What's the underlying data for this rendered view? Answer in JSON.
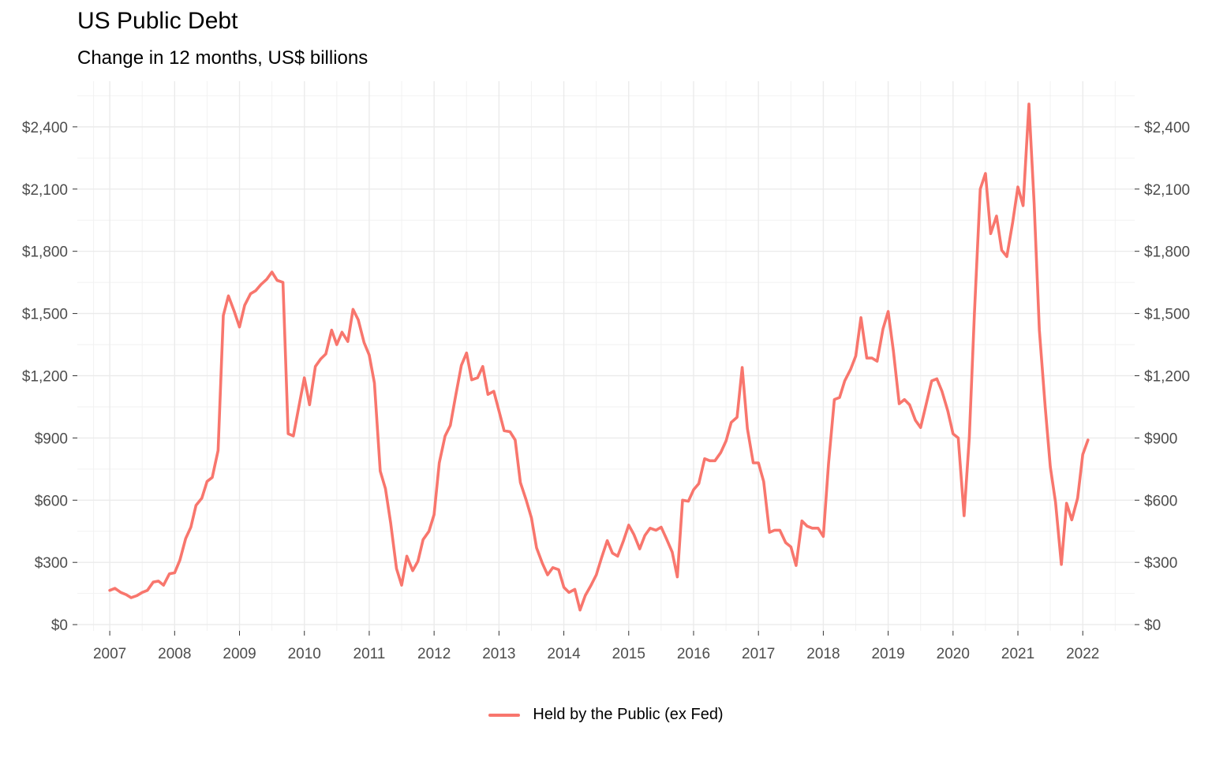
{
  "chart_data": {
    "type": "line",
    "title": "US Public Debt",
    "subtitle": "Change in 12 months, US$ billions",
    "xlabel": "",
    "ylabel": "",
    "xlim": [
      2006.5,
      2022.8
    ],
    "ylim": [
      -30,
      2620
    ],
    "y_ticks": [
      0,
      300,
      600,
      900,
      1200,
      1500,
      1800,
      2100,
      2400
    ],
    "y_tick_labels": [
      "$0",
      "$300",
      "$600",
      "$900",
      "$1,200",
      "$1,500",
      "$1,800",
      "$2,100",
      "$2,400"
    ],
    "x_ticks": [
      2007,
      2008,
      2009,
      2010,
      2011,
      2012,
      2013,
      2014,
      2015,
      2016,
      2017,
      2018,
      2019,
      2020,
      2021,
      2022
    ],
    "x_tick_labels": [
      "2007",
      "2008",
      "2009",
      "2010",
      "2011",
      "2012",
      "2013",
      "2014",
      "2015",
      "2016",
      "2017",
      "2018",
      "2019",
      "2020",
      "2021",
      "2022"
    ],
    "grid": true,
    "secondary_y_axis": true,
    "legend_position": "bottom",
    "series": [
      {
        "name": "Held by the Public (ex Fed)",
        "color": "#F8766D",
        "x": [
          2007.0,
          2007.08,
          2007.17,
          2007.25,
          2007.33,
          2007.42,
          2007.5,
          2007.58,
          2007.67,
          2007.75,
          2007.83,
          2007.92,
          2008.0,
          2008.08,
          2008.17,
          2008.25,
          2008.33,
          2008.42,
          2008.5,
          2008.58,
          2008.67,
          2008.75,
          2008.83,
          2008.92,
          2009.0,
          2009.08,
          2009.17,
          2009.25,
          2009.33,
          2009.42,
          2009.5,
          2009.58,
          2009.67,
          2009.75,
          2009.83,
          2009.92,
          2010.0,
          2010.08,
          2010.17,
          2010.25,
          2010.33,
          2010.42,
          2010.5,
          2010.58,
          2010.67,
          2010.75,
          2010.83,
          2010.92,
          2011.0,
          2011.08,
          2011.17,
          2011.25,
          2011.33,
          2011.42,
          2011.5,
          2011.58,
          2011.67,
          2011.75,
          2011.83,
          2011.92,
          2012.0,
          2012.08,
          2012.17,
          2012.25,
          2012.33,
          2012.42,
          2012.5,
          2012.58,
          2012.67,
          2012.75,
          2012.83,
          2012.92,
          2013.0,
          2013.08,
          2013.17,
          2013.25,
          2013.33,
          2013.42,
          2013.5,
          2013.58,
          2013.67,
          2013.75,
          2013.83,
          2013.92,
          2014.0,
          2014.08,
          2014.17,
          2014.25,
          2014.33,
          2014.42,
          2014.5,
          2014.58,
          2014.67,
          2014.75,
          2014.83,
          2014.92,
          2015.0,
          2015.08,
          2015.17,
          2015.25,
          2015.33,
          2015.42,
          2015.5,
          2015.58,
          2015.67,
          2015.75,
          2015.83,
          2015.92,
          2016.0,
          2016.08,
          2016.17,
          2016.25,
          2016.33,
          2016.42,
          2016.5,
          2016.58,
          2016.67,
          2016.75,
          2016.83,
          2016.92,
          2017.0,
          2017.08,
          2017.17,
          2017.25,
          2017.33,
          2017.42,
          2017.5,
          2017.58,
          2017.67,
          2017.75,
          2017.83,
          2017.92,
          2018.0,
          2018.08,
          2018.17,
          2018.25,
          2018.33,
          2018.42,
          2018.5,
          2018.58,
          2018.67,
          2018.75,
          2018.83,
          2018.92,
          2019.0,
          2019.08,
          2019.17,
          2019.25,
          2019.33,
          2019.42,
          2019.5,
          2019.58,
          2019.67,
          2019.75,
          2019.83,
          2019.92,
          2020.0,
          2020.08,
          2020.17,
          2020.25,
          2020.33,
          2020.42,
          2020.5,
          2020.58,
          2020.67,
          2020.75,
          2020.83,
          2020.92,
          2021.0,
          2021.08,
          2021.17,
          2021.25,
          2021.33,
          2021.42,
          2021.5,
          2021.58,
          2021.67,
          2021.75,
          2021.83,
          2021.92,
          2022.0,
          2022.08
        ],
        "values": [
          165,
          175,
          155,
          145,
          130,
          140,
          155,
          165,
          205,
          210,
          190,
          245,
          250,
          310,
          415,
          470,
          575,
          610,
          690,
          710,
          840,
          1490,
          1585,
          1510,
          1435,
          1540,
          1595,
          1610,
          1640,
          1665,
          1700,
          1660,
          1650,
          920,
          910,
          1060,
          1190,
          1060,
          1245,
          1280,
          1305,
          1420,
          1350,
          1410,
          1365,
          1520,
          1470,
          1360,
          1300,
          1165,
          740,
          655,
          490,
          270,
          190,
          330,
          260,
          305,
          410,
          450,
          530,
          780,
          910,
          960,
          1100,
          1250,
          1310,
          1180,
          1190,
          1245,
          1110,
          1125,
          1030,
          935,
          930,
          890,
          685,
          600,
          515,
          370,
          295,
          240,
          275,
          265,
          180,
          155,
          170,
          70,
          140,
          190,
          240,
          320,
          405,
          345,
          330,
          405,
          480,
          435,
          365,
          430,
          465,
          455,
          470,
          415,
          350,
          230,
          600,
          595,
          650,
          680,
          800,
          790,
          790,
          830,
          885,
          975,
          1000,
          1240,
          945,
          780,
          780,
          690,
          445,
          455,
          455,
          395,
          375,
          285,
          500,
          475,
          465,
          465,
          425,
          775,
          1085,
          1095,
          1175,
          1230,
          1295,
          1480,
          1285,
          1285,
          1270,
          1425,
          1510,
          1320,
          1065,
          1085,
          1060,
          985,
          950,
          1055,
          1175,
          1185,
          1125,
          1030,
          920,
          900,
          525,
          900,
          1500,
          2100,
          2175,
          1885,
          1970,
          1805,
          1775,
          1940,
          2110,
          2020,
          2510,
          2030,
          1420,
          1050,
          760,
          590,
          290,
          585,
          505,
          610,
          820,
          890
        ]
      }
    ]
  }
}
